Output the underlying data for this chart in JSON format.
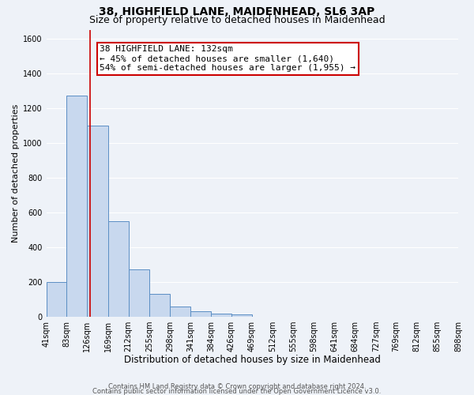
{
  "title1": "38, HIGHFIELD LANE, MAIDENHEAD, SL6 3AP",
  "title2": "Size of property relative to detached houses in Maidenhead",
  "xlabel": "Distribution of detached houses by size in Maidenhead",
  "ylabel": "Number of detached properties",
  "bar_lefts": [
    41,
    83,
    126,
    169,
    212,
    255,
    298,
    341,
    384,
    426,
    469,
    512,
    555,
    598,
    641,
    684,
    727,
    769,
    812,
    855
  ],
  "bar_rights": [
    83,
    126,
    169,
    212,
    255,
    298,
    341,
    384,
    426,
    469,
    512,
    555,
    598,
    641,
    684,
    727,
    769,
    812,
    855,
    898
  ],
  "bar_values": [
    200,
    1270,
    1100,
    550,
    270,
    130,
    60,
    30,
    20,
    15,
    0,
    0,
    0,
    0,
    0,
    0,
    0,
    0,
    0,
    0
  ],
  "bar_color": "#c8d8ee",
  "bar_edge_color": "#5b8ec4",
  "vline_x": 132,
  "vline_color": "#cc0000",
  "annotation_line1": "38 HIGHFIELD LANE: 132sqm",
  "annotation_line2": "← 45% of detached houses are smaller (1,640)",
  "annotation_line3": "54% of semi-detached houses are larger (1,955) →",
  "annotation_box_color": "#ffffff",
  "annotation_box_edge": "#cc0000",
  "ylim": [
    0,
    1650
  ],
  "xlim": [
    41,
    898
  ],
  "yticks": [
    0,
    200,
    400,
    600,
    800,
    1000,
    1200,
    1400,
    1600
  ],
  "xtick_positions": [
    41,
    83,
    126,
    169,
    212,
    255,
    298,
    341,
    384,
    426,
    469,
    512,
    555,
    598,
    641,
    684,
    727,
    769,
    812,
    855,
    898
  ],
  "tick_labels": [
    "41sqm",
    "83sqm",
    "126sqm",
    "169sqm",
    "212sqm",
    "255sqm",
    "298sqm",
    "341sqm",
    "384sqm",
    "426sqm",
    "469sqm",
    "512sqm",
    "555sqm",
    "598sqm",
    "641sqm",
    "684sqm",
    "727sqm",
    "769sqm",
    "812sqm",
    "855sqm",
    "898sqm"
  ],
  "footer1": "Contains HM Land Registry data © Crown copyright and database right 2024.",
  "footer2": "Contains public sector information licensed under the Open Government Licence v3.0.",
  "bg_color": "#eef2f8",
  "grid_color": "#ffffff",
  "title1_fontsize": 10,
  "title2_fontsize": 9,
  "xlabel_fontsize": 8.5,
  "ylabel_fontsize": 8,
  "tick_fontsize": 7,
  "annotation_fontsize": 8,
  "footer_fontsize": 6
}
